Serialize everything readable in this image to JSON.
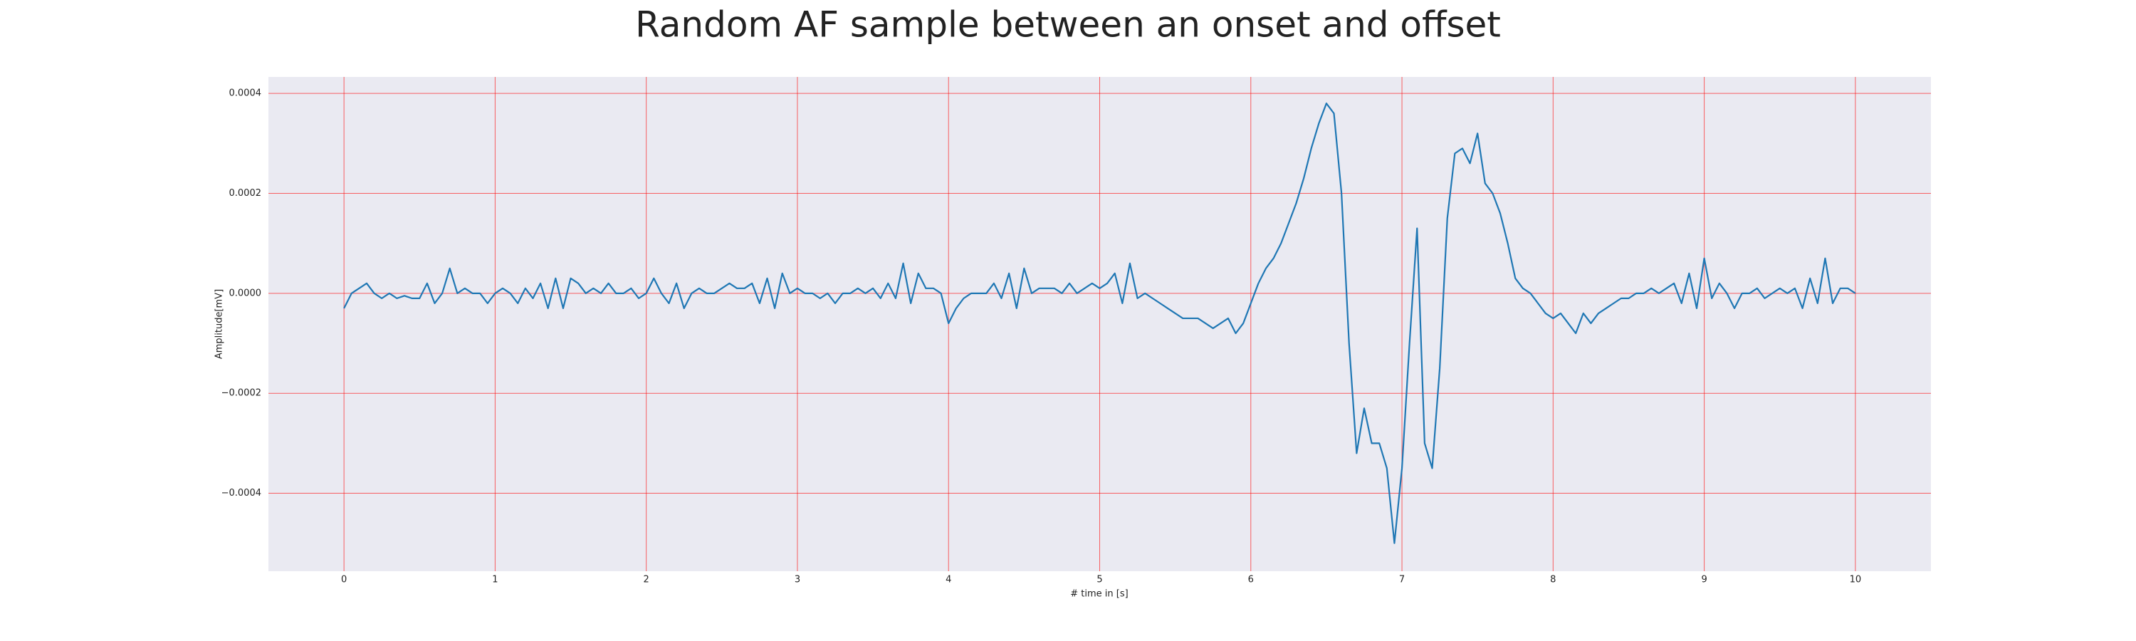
{
  "chart_data": {
    "type": "line",
    "title": "Random AF sample between an onset and offset",
    "xlabel": "# time in [s]",
    "ylabel": "Amplitude[mV]",
    "x": [
      0,
      0.05,
      0.1,
      0.15,
      0.2,
      0.25,
      0.3,
      0.35,
      0.4,
      0.45,
      0.5,
      0.55,
      0.6,
      0.65,
      0.7,
      0.75,
      0.8,
      0.85,
      0.9,
      0.95,
      1,
      1.05,
      1.1,
      1.15,
      1.2,
      1.25,
      1.3,
      1.35,
      1.4,
      1.45,
      1.5,
      1.55,
      1.6,
      1.65,
      1.7,
      1.75,
      1.8,
      1.85,
      1.9,
      1.95,
      2,
      2.05,
      2.1,
      2.15,
      2.2,
      2.25,
      2.3,
      2.35,
      2.4,
      2.45,
      2.5,
      2.55,
      2.6,
      2.65,
      2.7,
      2.75,
      2.8,
      2.85,
      2.9,
      2.95,
      3,
      3.05,
      3.1,
      3.15,
      3.2,
      3.25,
      3.3,
      3.35,
      3.4,
      3.45,
      3.5,
      3.55,
      3.6,
      3.65,
      3.7,
      3.75,
      3.8,
      3.85,
      3.9,
      3.95,
      4,
      4.05,
      4.1,
      4.15,
      4.2,
      4.25,
      4.3,
      4.35,
      4.4,
      4.45,
      4.5,
      4.55,
      4.6,
      4.65,
      4.7,
      4.75,
      4.8,
      4.85,
      4.9,
      4.95,
      5,
      5.05,
      5.1,
      5.15,
      5.2,
      5.25,
      5.3,
      5.35,
      5.4,
      5.45,
      5.5,
      5.55,
      5.6,
      5.65,
      5.7,
      5.75,
      5.8,
      5.85,
      5.9,
      5.95,
      6,
      6.05,
      6.1,
      6.15,
      6.2,
      6.25,
      6.3,
      6.35,
      6.4,
      6.45,
      6.5,
      6.55,
      6.6,
      6.65,
      6.7,
      6.75,
      6.8,
      6.85,
      6.9,
      6.95,
      7,
      7.05,
      7.1,
      7.15,
      7.2,
      7.25,
      7.3,
      7.35,
      7.4,
      7.45,
      7.5,
      7.55,
      7.6,
      7.65,
      7.7,
      7.75,
      7.8,
      7.85,
      7.9,
      7.95,
      8,
      8.05,
      8.1,
      8.15,
      8.2,
      8.25,
      8.3,
      8.35,
      8.4,
      8.45,
      8.5,
      8.55,
      8.6,
      8.65,
      8.7,
      8.75,
      8.8,
      8.85,
      8.9,
      8.95,
      9,
      9.05,
      9.1,
      9.15,
      9.2,
      9.25,
      9.3,
      9.35,
      9.4,
      9.45,
      9.5,
      9.55,
      9.6,
      9.65,
      9.7,
      9.75,
      9.8,
      9.85,
      9.9,
      9.95,
      10
    ],
    "values": [
      -3e-05,
      0,
      1e-05,
      2e-05,
      0,
      -1e-05,
      0,
      -1e-05,
      -5e-06,
      -1e-05,
      -1e-05,
      2e-05,
      -2e-05,
      0,
      5e-05,
      0,
      1e-05,
      0,
      0,
      -2e-05,
      0,
      1e-05,
      0,
      -2e-05,
      1e-05,
      -1e-05,
      2e-05,
      -3e-05,
      3e-05,
      -3e-05,
      3e-05,
      2e-05,
      0,
      1e-05,
      0,
      2e-05,
      0,
      0,
      1e-05,
      -1e-05,
      0,
      3e-05,
      0,
      -2e-05,
      2e-05,
      -3e-05,
      0,
      1e-05,
      0,
      0,
      1e-05,
      2e-05,
      1e-05,
      1e-05,
      2e-05,
      -2e-05,
      3e-05,
      -3e-05,
      4e-05,
      0,
      1e-05,
      0,
      0,
      -1e-05,
      0,
      -2e-05,
      0,
      0,
      1e-05,
      0,
      1e-05,
      -1e-05,
      2e-05,
      -1e-05,
      6e-05,
      -2e-05,
      4e-05,
      1e-05,
      1e-05,
      0,
      -6e-05,
      -3e-05,
      -1e-05,
      0,
      0,
      0,
      2e-05,
      -1e-05,
      4e-05,
      -3e-05,
      5e-05,
      0,
      1e-05,
      1e-05,
      1e-05,
      0,
      2e-05,
      0,
      1e-05,
      2e-05,
      1e-05,
      2e-05,
      4e-05,
      -2e-05,
      6e-05,
      -1e-05,
      0,
      -1e-05,
      -2e-05,
      -3e-05,
      -4e-05,
      -5e-05,
      -5e-05,
      -5e-05,
      -6e-05,
      -7e-05,
      -6e-05,
      -5e-05,
      -8e-05,
      -6e-05,
      -2e-05,
      2e-05,
      5e-05,
      7e-05,
      0.0001,
      0.00014,
      0.00018,
      0.00023,
      0.00029,
      0.00034,
      0.00038,
      0.00036,
      0.0002,
      -0.0001,
      -0.00032,
      -0.00023,
      -0.0003,
      -0.0003,
      -0.00035,
      -0.0005,
      -0.00035,
      -0.0001,
      0.00013,
      -0.0003,
      -0.00035,
      -0.00015,
      0.00015,
      0.00028,
      0.00029,
      0.00026,
      0.00032,
      0.00022,
      0.0002,
      0.00016,
      0.0001,
      3e-05,
      1e-05,
      0,
      -2e-05,
      -4e-05,
      -5e-05,
      -4e-05,
      -6e-05,
      -8e-05,
      -4e-05,
      -6e-05,
      -4e-05,
      -3e-05,
      -2e-05,
      -1e-05,
      -1e-05,
      0,
      0,
      1e-05,
      0,
      1e-05,
      2e-05,
      -2e-05,
      4e-05,
      -3e-05,
      7e-05,
      -1e-05,
      2e-05,
      0,
      -3e-05,
      0,
      0,
      1e-05,
      -1e-05,
      0,
      1e-05,
      0,
      1e-05,
      -3e-05,
      3e-05,
      -2e-05,
      7e-05,
      -2e-05,
      1e-05,
      1e-05,
      0
    ],
    "color": "#1f77b4",
    "xlim": [
      -0.5,
      10.5
    ],
    "xticks": [
      0,
      1,
      2,
      3,
      4,
      5,
      6,
      7,
      8,
      9,
      10
    ],
    "ylim": [
      -0.000556,
      0.000433
    ],
    "yticks": [
      {
        "value": -0.0004,
        "label": "−0.0004"
      },
      {
        "value": -0.0002,
        "label": "−0.0002"
      },
      {
        "value": 0,
        "label": "0.0000"
      },
      {
        "value": 0.0002,
        "label": "0.0002"
      },
      0.0004
    ],
    "grid": true,
    "grid_color": "#ff0000"
  }
}
